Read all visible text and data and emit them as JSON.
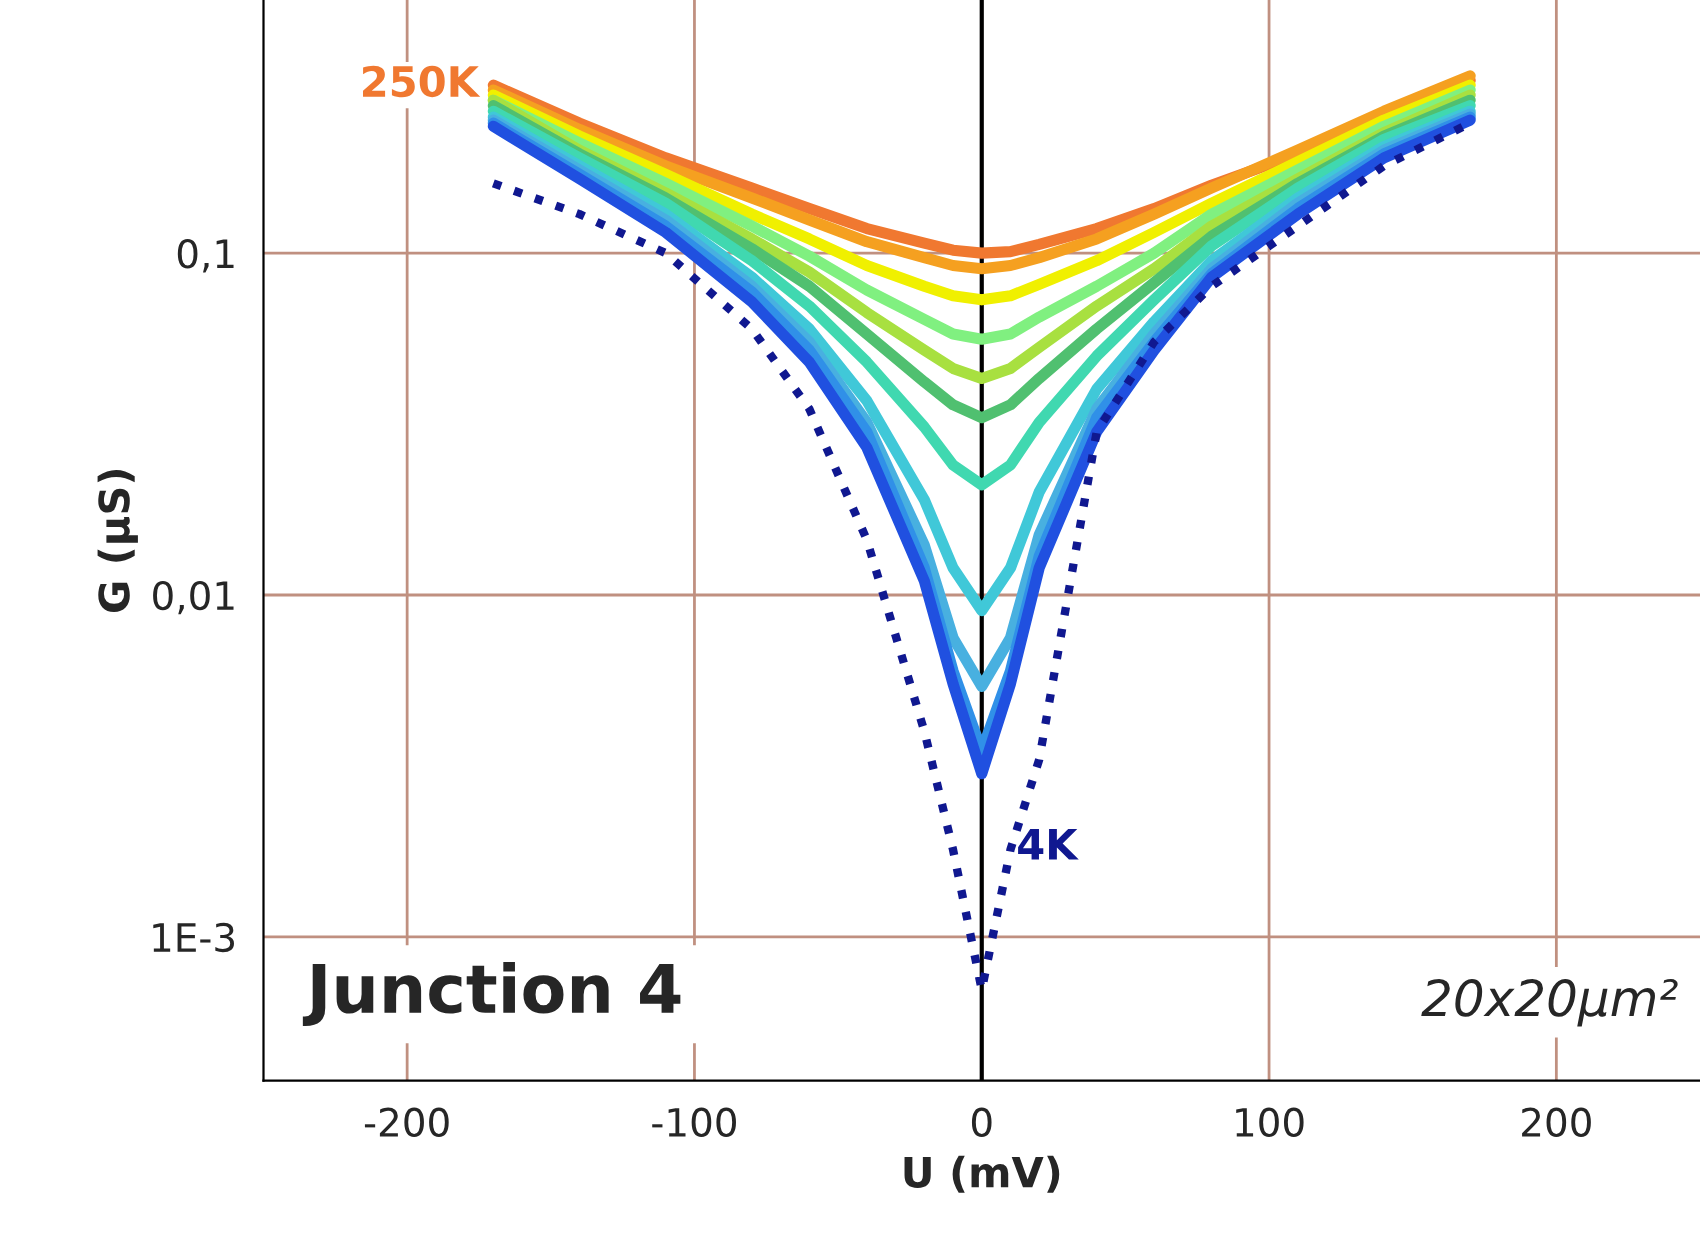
{
  "chart_data": {
    "type": "line",
    "xlabel": "U (mV)",
    "ylabel": "G (µS)",
    "x": [
      -170,
      -140,
      -110,
      -80,
      -60,
      -40,
      -20,
      -10,
      0,
      10,
      20,
      40,
      60,
      80,
      110,
      140,
      170
    ],
    "series": [
      {
        "name": "250K",
        "color": "#f07830",
        "values": [
          0.31,
          0.24,
          0.19,
          0.155,
          0.135,
          0.118,
          0.107,
          0.102,
          0.1,
          0.101,
          0.106,
          0.118,
          0.135,
          0.158,
          0.195,
          0.25,
          0.32
        ]
      },
      {
        "color": "#f5a020",
        "values": [
          0.3,
          0.23,
          0.18,
          0.145,
          0.125,
          0.108,
          0.097,
          0.092,
          0.09,
          0.092,
          0.097,
          0.11,
          0.13,
          0.155,
          0.2,
          0.26,
          0.33
        ]
      },
      {
        "color": "#f0f000",
        "values": [
          0.29,
          0.22,
          0.17,
          0.13,
          0.11,
          0.092,
          0.08,
          0.075,
          0.073,
          0.075,
          0.081,
          0.095,
          0.115,
          0.14,
          0.185,
          0.245,
          0.31
        ]
      },
      {
        "color": "#80f080",
        "values": [
          0.28,
          0.21,
          0.16,
          0.12,
          0.098,
          0.078,
          0.064,
          0.058,
          0.056,
          0.058,
          0.065,
          0.08,
          0.1,
          0.13,
          0.175,
          0.235,
          0.3
        ]
      },
      {
        "color": "#a8e040",
        "values": [
          0.28,
          0.2,
          0.15,
          0.11,
          0.088,
          0.067,
          0.052,
          0.046,
          0.043,
          0.046,
          0.053,
          0.07,
          0.09,
          0.12,
          0.165,
          0.225,
          0.29
        ]
      },
      {
        "color": "#50c070",
        "values": [
          0.27,
          0.195,
          0.145,
          0.103,
          0.08,
          0.058,
          0.042,
          0.036,
          0.033,
          0.036,
          0.043,
          0.06,
          0.082,
          0.112,
          0.16,
          0.22,
          0.28
        ]
      },
      {
        "color": "#40d8b0",
        "values": [
          0.26,
          0.19,
          0.14,
          0.095,
          0.07,
          0.048,
          0.031,
          0.024,
          0.021,
          0.024,
          0.032,
          0.05,
          0.073,
          0.105,
          0.155,
          0.215,
          0.27
        ]
      },
      {
        "color": "#40c8d8",
        "values": [
          0.25,
          0.18,
          0.13,
          0.085,
          0.06,
          0.037,
          0.019,
          0.012,
          0.009,
          0.012,
          0.02,
          0.04,
          0.063,
          0.095,
          0.145,
          0.205,
          0.26
        ]
      },
      {
        "color": "#48b0e0",
        "values": [
          0.245,
          0.175,
          0.125,
          0.08,
          0.055,
          0.032,
          0.014,
          0.0075,
          0.0054,
          0.0075,
          0.015,
          0.035,
          0.058,
          0.09,
          0.14,
          0.2,
          0.255
        ]
      },
      {
        "color": "#3090e8",
        "values": [
          0.24,
          0.17,
          0.12,
          0.077,
          0.052,
          0.03,
          0.012,
          0.006,
          0.0035,
          0.006,
          0.013,
          0.033,
          0.055,
          0.087,
          0.135,
          0.195,
          0.25
        ]
      },
      {
        "color": "#2050e0",
        "values": [
          0.235,
          0.165,
          0.115,
          0.072,
          0.048,
          0.027,
          0.011,
          0.0055,
          0.003,
          0.0055,
          0.012,
          0.03,
          0.052,
          0.085,
          0.13,
          0.19,
          0.245
        ]
      },
      {
        "name": "4K",
        "color": "#101890",
        "line_style": "dotted",
        "values": [
          0.16,
          0.13,
          0.1,
          0.06,
          0.035,
          0.0145,
          0.004,
          0.0018,
          0.0007,
          0.0018,
          0.0033,
          0.03,
          0.055,
          0.08,
          0.12,
          0.18,
          0.24
        ]
      }
    ],
    "log": "y",
    "xlim": [
      -250,
      250
    ],
    "xticks": [
      -200,
      -100,
      0,
      100,
      200
    ],
    "ylim": [
      0.00038,
      0.55
    ],
    "yticks": [
      {
        "value": 0.001,
        "label": "1E-3"
      },
      {
        "value": 0.01,
        "label": "0,01"
      },
      {
        "value": 0.1,
        "label": "0,1"
      }
    ],
    "ref_lines": [
      {
        "axis": "x",
        "value": 0,
        "color": "#000000"
      }
    ],
    "annotations": [
      "Junction 4",
      "20x20μm²"
    ],
    "grid": true,
    "line_style": "solid",
    "legend": false
  }
}
